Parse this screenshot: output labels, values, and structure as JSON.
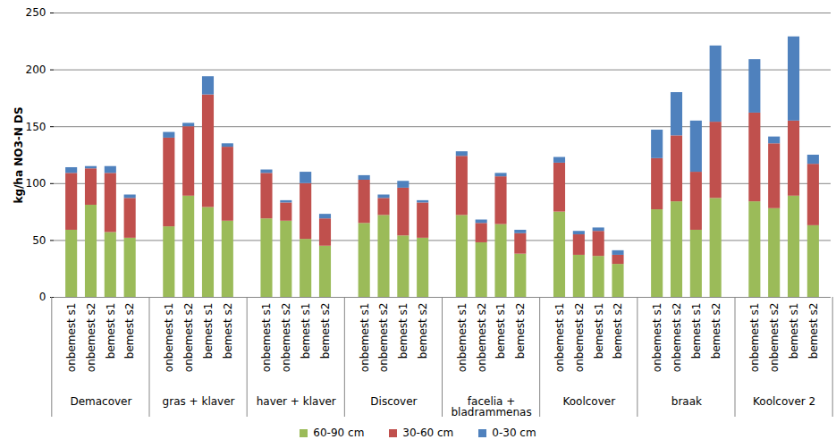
{
  "chart_data": {
    "type": "bar",
    "stacked": true,
    "grid": true,
    "legend": "bottom",
    "y_label": "kg/ha NO3-N DS",
    "ylim": [
      0,
      250
    ],
    "yticks": [
      0,
      50,
      100,
      150,
      200,
      250
    ],
    "categories": [
      "onbemest s1",
      "onbemest s2",
      "bemest s1",
      "bemest s2",
      "onbemest s1",
      "onbemest s2",
      "bemest s1",
      "bemest s2",
      "onbemest s1",
      "onbemest s2",
      "bemest s1",
      "bemest s2",
      "onbemest s1",
      "onbemest s2",
      "bemest s1",
      "bemest s2",
      "onbemest s1",
      "onbemest s2",
      "bemest s1",
      "bemest s2",
      "onbemest s1",
      "onbemest s2",
      "bemest s1",
      "bemest s2",
      "onbemest s1",
      "onbemest s2",
      "bemest s1",
      "bemest s2",
      "onbemest s1",
      "onbemest s2",
      "bemest s1",
      "bemest s2"
    ],
    "groups": [
      "Demacover",
      "Demacover",
      "Demacover",
      "Demacover",
      "gras + klaver",
      "gras + klaver",
      "gras + klaver",
      "gras + klaver",
      "haver + klaver",
      "haver + klaver",
      "haver + klaver",
      "haver + klaver",
      "Discover",
      "Discover",
      "Discover",
      "Discover",
      "facelia + bladrammenas",
      "facelia + bladrammenas",
      "facelia + bladrammenas",
      "facelia + bladrammenas",
      "Koolcover",
      "Koolcover",
      "Koolcover",
      "Koolcover",
      "braak",
      "braak",
      "braak",
      "braak",
      "Koolcover 2",
      "Koolcover 2",
      "Koolcover 2",
      "Koolcover 2"
    ],
    "series": [
      {
        "name": "60-90 cm",
        "color": "#9BBB59",
        "values": [
          59,
          81,
          57,
          52,
          62,
          89,
          79,
          67,
          69,
          67,
          51,
          45,
          65,
          72,
          54,
          52,
          72,
          48,
          64,
          38,
          75,
          37,
          36,
          29,
          77,
          84,
          59,
          87,
          84,
          78,
          89,
          63
        ]
      },
      {
        "name": "30-60 cm",
        "color": "#C0504D",
        "values": [
          50,
          32,
          52,
          35,
          78,
          61,
          99,
          65,
          40,
          16,
          49,
          24,
          38,
          15,
          42,
          31,
          52,
          17,
          42,
          18,
          43,
          18,
          22,
          8,
          45,
          58,
          51,
          67,
          78,
          57,
          66,
          54
        ]
      },
      {
        "name": "0-30 cm",
        "color": "#4F81BD",
        "values": [
          5,
          2,
          6,
          3,
          5,
          3,
          16,
          3,
          3,
          2,
          10,
          4,
          4,
          3,
          6,
          2,
          4,
          3,
          3,
          3,
          5,
          3,
          3,
          4,
          25,
          38,
          45,
          67,
          47,
          6,
          74,
          8
        ]
      }
    ]
  }
}
